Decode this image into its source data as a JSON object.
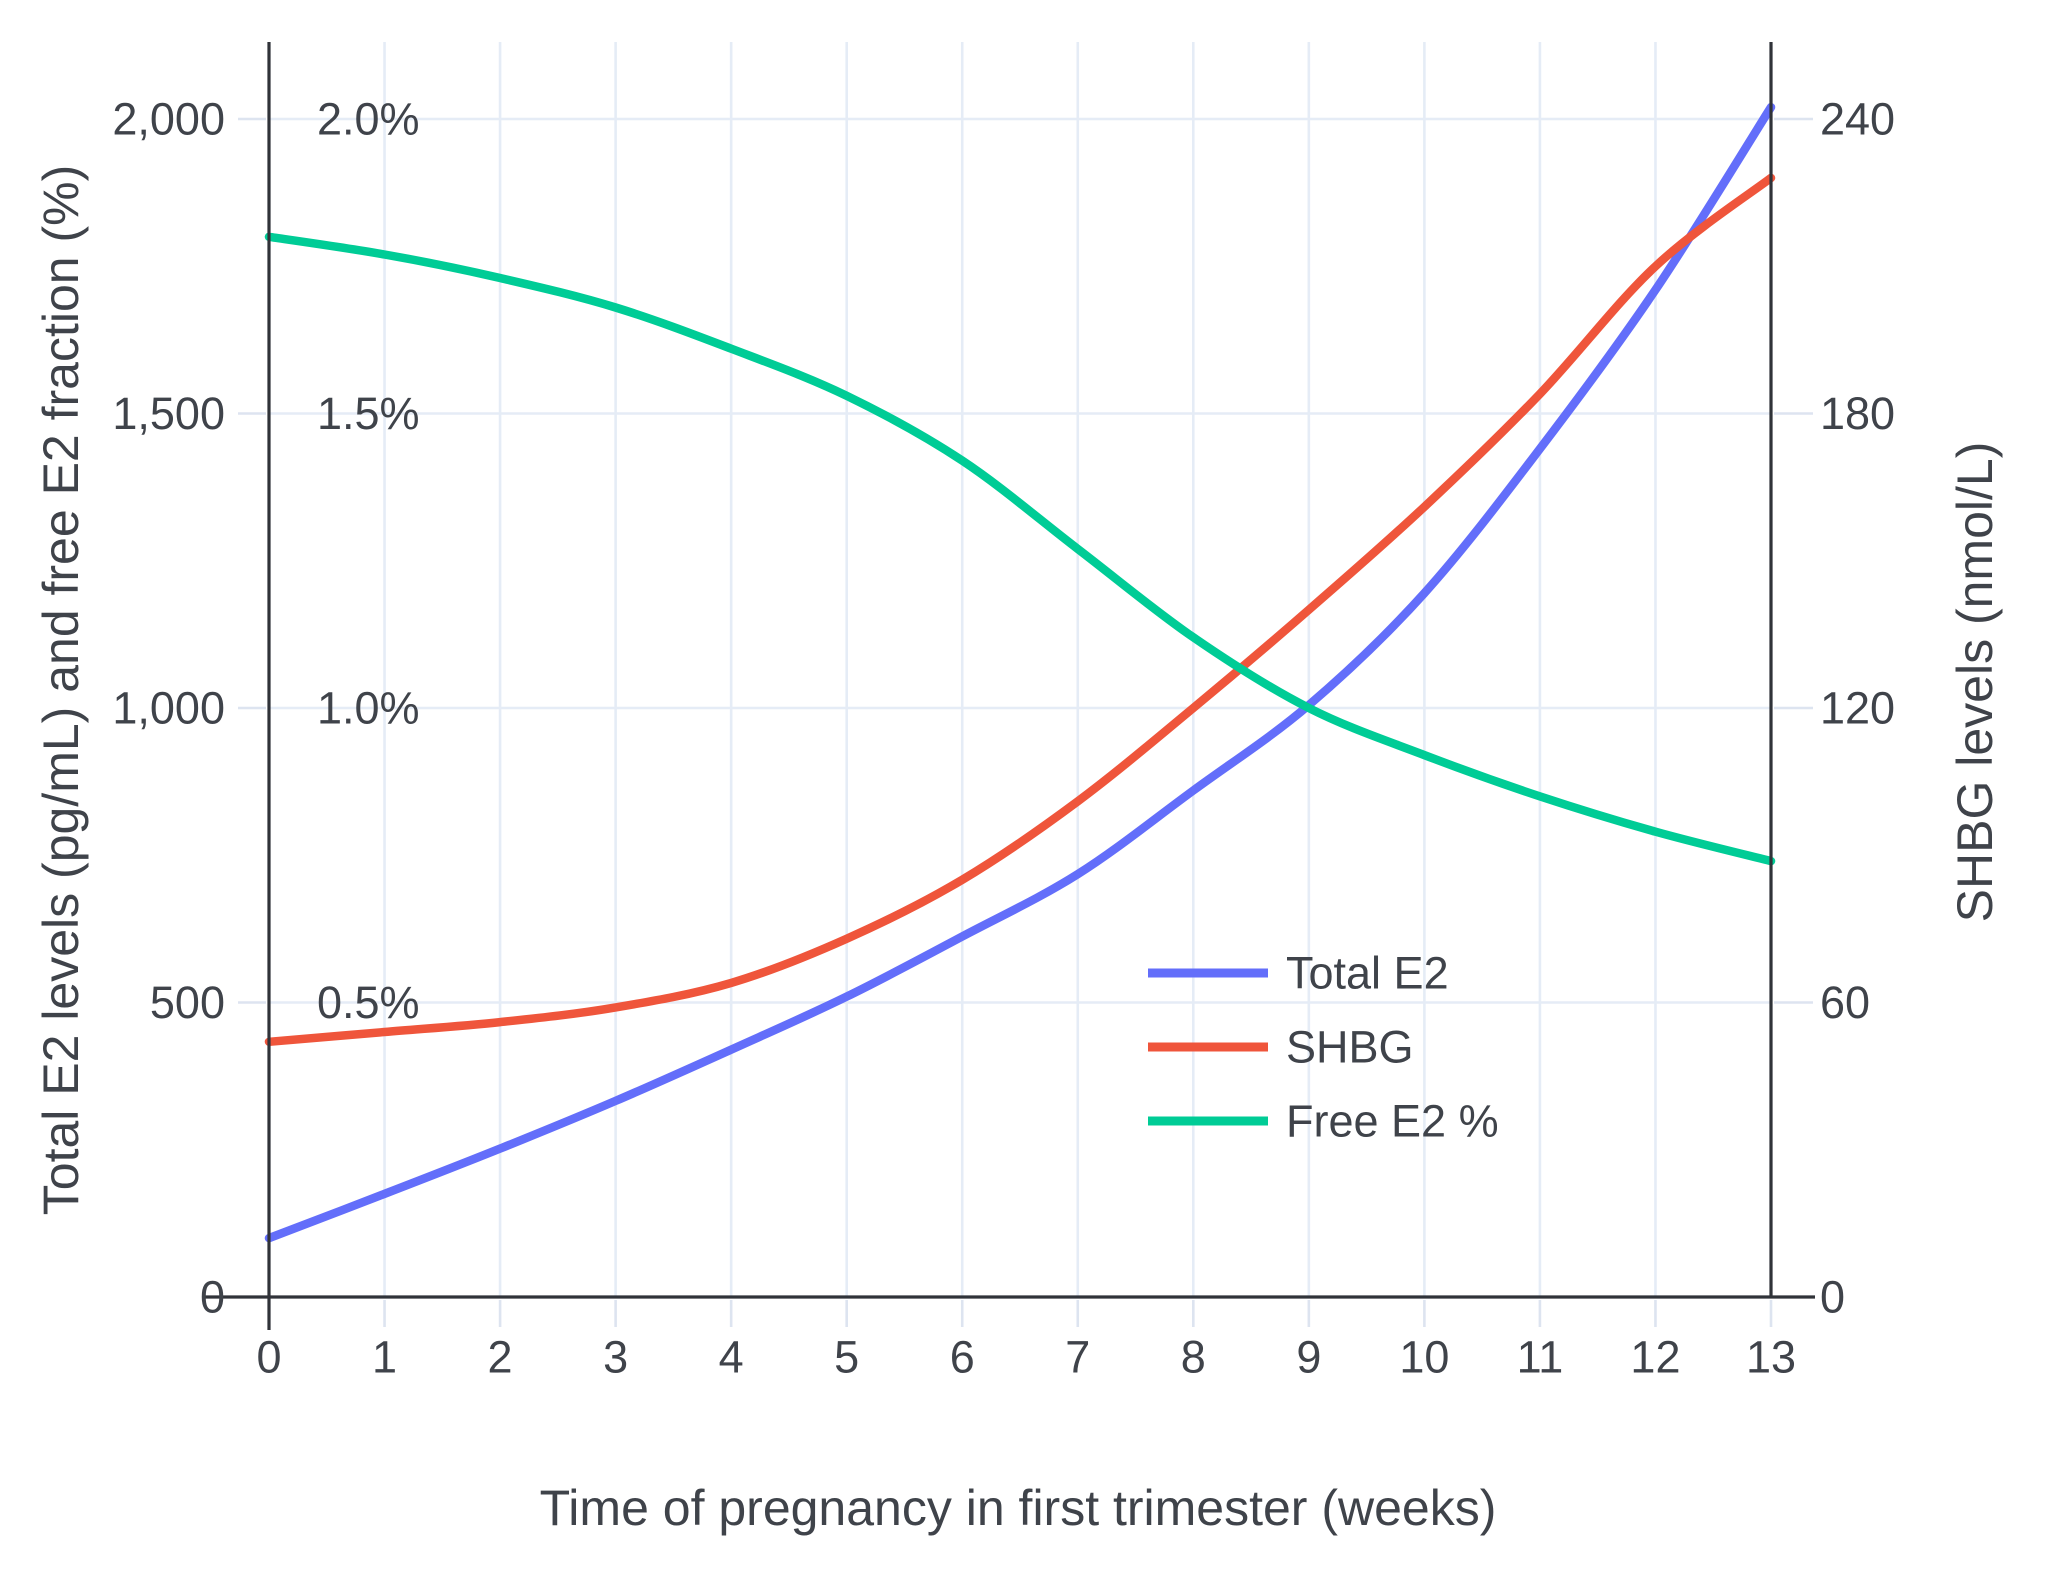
{
  "chart_data": {
    "type": "line",
    "title": "",
    "xlabel": "Time of pregnancy in first trimester (weeks)",
    "ylabel_left": "Total E2 levels (pg/mL) and free E2 fraction (%)",
    "ylabel_right": "SHBG levels (nmol/L)",
    "x": [
      0,
      1,
      2,
      3,
      4,
      5,
      6,
      7,
      8,
      9,
      10,
      11,
      12,
      13
    ],
    "xticks": [
      "0",
      "1",
      "2",
      "3",
      "4",
      "5",
      "6",
      "7",
      "8",
      "9",
      "10",
      "11",
      "12",
      "13"
    ],
    "xlim": [
      0,
      13
    ],
    "ylim_left": [
      0,
      2000
    ],
    "ylim_right": [
      0,
      240
    ],
    "pct_axis_mapping": "free E2 % plotted on left axis, 2,000 pg/mL gridline = 2.0%",
    "grid": true,
    "legend_position": "inside plot, lower right",
    "yticks_left": [
      {
        "value": 0,
        "label": "0"
      },
      {
        "value": 500,
        "label": "500"
      },
      {
        "value": 1000,
        "label": "1,000"
      },
      {
        "value": 1500,
        "label": "1,500"
      },
      {
        "value": 2000,
        "label": "2,000"
      }
    ],
    "yticks_pct": [
      {
        "value": 500,
        "label": "0.5%"
      },
      {
        "value": 1000,
        "label": "1.0%"
      },
      {
        "value": 1500,
        "label": "1.5%"
      },
      {
        "value": 2000,
        "label": "2.0%"
      }
    ],
    "yticks_right": [
      {
        "value": 0,
        "label": "0"
      },
      {
        "value": 60,
        "label": "60"
      },
      {
        "value": 120,
        "label": "120"
      },
      {
        "value": 180,
        "label": "180"
      },
      {
        "value": 240,
        "label": "240"
      }
    ],
    "series": [
      {
        "name": "Total E2",
        "axis": "left",
        "unit": "pg/mL",
        "color": "#636EFA",
        "values": [
          100,
          175,
          252,
          333,
          420,
          510,
          612,
          718,
          860,
          1005,
          1195,
          1440,
          1710,
          2020
        ]
      },
      {
        "name": "SHBG",
        "axis": "right",
        "unit": "nmol/L",
        "color": "#EF553B",
        "values": [
          52,
          54,
          56,
          59,
          64,
          73,
          85,
          101,
          120,
          140,
          161,
          184,
          210,
          228
        ]
      },
      {
        "name": "Free E2 %",
        "axis": "left-as-percent",
        "unit": "%",
        "color": "#00CC96",
        "values": [
          1.8,
          1.77,
          1.73,
          1.68,
          1.61,
          1.53,
          1.42,
          1.27,
          1.12,
          1.0,
          0.92,
          0.85,
          0.79,
          0.74
        ]
      }
    ],
    "colors": {
      "grid": "#E5ECF6",
      "tick_dash": "#DDE4F0",
      "axis_line": "#303339",
      "text": "#3F434A",
      "background": "#FFFFFF"
    }
  }
}
